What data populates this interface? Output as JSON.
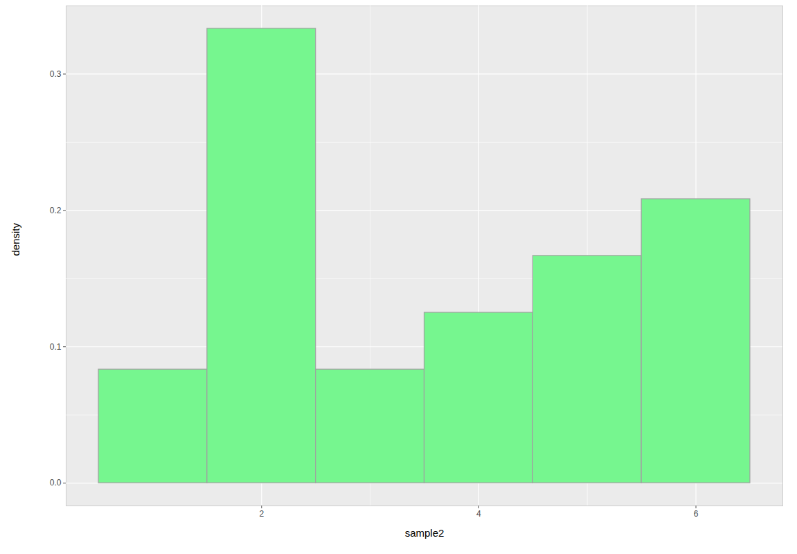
{
  "chart_data": {
    "type": "histogram",
    "xlabel": "sample2",
    "ylabel": "density",
    "bins": [
      0.5,
      1.5,
      2.5,
      3.5,
      4.5,
      5.5,
      6.5
    ],
    "values": [
      0.0833,
      0.3333,
      0.0833,
      0.125,
      0.1667,
      0.2083
    ],
    "color": "#76f68f",
    "xlim": [
      0.2,
      6.8
    ],
    "xticks": [
      2,
      4,
      6
    ],
    "ylim": [
      -0.0167,
      0.35
    ],
    "yticks": [
      {
        "value": 0,
        "label": "0.0"
      },
      {
        "value": 0.1,
        "label": "0.1"
      },
      {
        "value": 0.2,
        "label": "0.2"
      },
      {
        "value": 0.3,
        "label": "0.3"
      }
    ],
    "grid": true
  }
}
